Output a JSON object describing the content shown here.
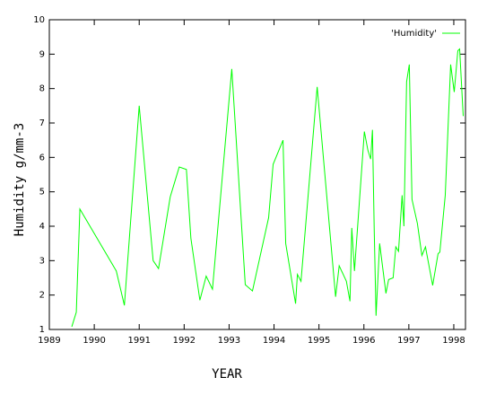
{
  "chart_data": {
    "type": "line",
    "xlabel": "YEAR",
    "ylabel": "Humidity g/mm-3",
    "x": [
      1989.5,
      1989.6,
      1989.68,
      1990.49,
      1990.67,
      1991.0,
      1991.31,
      1991.43,
      1991.69,
      1991.89,
      1992.05,
      1992.15,
      1992.35,
      1992.49,
      1992.63,
      1993.06,
      1993.36,
      1993.52,
      1993.88,
      1993.98,
      1994.2,
      1994.26,
      1994.48,
      1994.52,
      1994.6,
      1994.96,
      1995.37,
      1995.45,
      1995.61,
      1995.69,
      1995.73,
      1995.79,
      1996.01,
      1996.09,
      1996.15,
      1996.19,
      1996.23,
      1996.27,
      1996.35,
      1996.49,
      1996.55,
      1996.65,
      1996.71,
      1996.77,
      1996.85,
      1996.89,
      1996.95,
      1997.01,
      1997.07,
      1997.19,
      1997.29,
      1997.37,
      1997.53,
      1997.65,
      1997.69,
      1997.81,
      1997.93,
      1998.01,
      1998.09,
      1998.13,
      1998.21
    ],
    "series": [
      {
        "name": "'Humidity'",
        "color": "#00ff00",
        "values": [
          1.08,
          1.5,
          4.5,
          2.7,
          1.7,
          7.5,
          3.0,
          2.77,
          4.85,
          5.72,
          5.65,
          3.65,
          1.85,
          2.55,
          2.17,
          8.57,
          2.3,
          2.12,
          4.25,
          5.8,
          6.5,
          3.5,
          1.75,
          2.6,
          2.4,
          8.05,
          1.95,
          2.85,
          2.4,
          1.82,
          3.95,
          2.7,
          6.75,
          6.2,
          5.95,
          6.8,
          3.85,
          1.4,
          3.5,
          2.05,
          2.45,
          2.5,
          3.4,
          3.27,
          4.9,
          4.0,
          8.2,
          8.7,
          4.78,
          4.08,
          3.15,
          3.4,
          2.28,
          3.2,
          3.25,
          4.9,
          8.7,
          7.9,
          9.1,
          9.15,
          7.2
        ]
      }
    ],
    "xlim": [
      1989,
      1998.26
    ],
    "ylim": [
      1,
      10
    ],
    "xticks": [
      1989,
      1990,
      1991,
      1992,
      1993,
      1994,
      1995,
      1996,
      1997,
      1998
    ],
    "yticks": [
      1,
      2,
      3,
      4,
      5,
      6,
      7,
      8,
      9,
      10
    ],
    "legend": "top-right"
  }
}
